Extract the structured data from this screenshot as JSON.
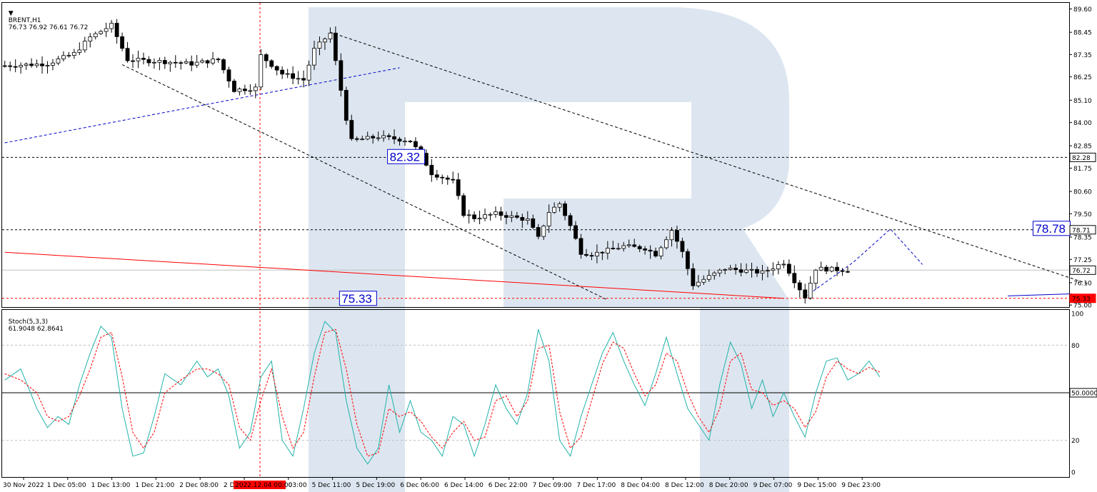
{
  "chart_data": [
    {
      "type": "candlestick",
      "symbol": "BRENT,H1",
      "ohlc_header": "76.73 76.92 76.61 76.72",
      "ylim": [
        74.9,
        89.9
      ],
      "y_ticks": [
        "89.60",
        "88.45",
        "87.35",
        "86.25",
        "85.10",
        "84.00",
        "82.85",
        "81.75",
        "80.60",
        "79.50",
        "78.35",
        "77.25",
        "76.10",
        "75.00"
      ],
      "x_ticks": [
        "30 Nov 2022",
        "1 Dec 05:00",
        "1 Dec 13:00",
        "1 Dec 21:00",
        "2 Dec 08:00",
        "2 Dec",
        "5 Dec 03:00",
        "5 Dec 11:00",
        "5 Dec 19:00",
        "6 Dec 06:00",
        "6 Dec 14:00",
        "6 Dec 22:00",
        "7 Dec 09:00",
        "7 Dec 17:00",
        "8 Dec 04:00",
        "8 Dec 12:00",
        "8 Dec 20:00",
        "9 Dec 07:00",
        "9 Dec 15:00",
        "9 Dec 23:00"
      ],
      "cursor_time_label": "2022.12.04 00:00",
      "bar_count": 200,
      "levels": [
        {
          "value": 82.28,
          "label": "82.28",
          "color": "#000000",
          "style": "dotted"
        },
        {
          "value": 78.71,
          "label": "78.71",
          "color": "#000000",
          "style": "dotted"
        },
        {
          "value": 76.72,
          "label": "76.72",
          "color": "#000000",
          "style": "solid",
          "role": "current-price"
        },
        {
          "value": 75.33,
          "label": "75.33",
          "color": "#ff0000",
          "style": "dotted"
        }
      ],
      "annotations": [
        {
          "text": "82.32",
          "x": 72,
          "y": 82.32,
          "color": "#0000cc"
        },
        {
          "text": "78.78",
          "x": 193,
          "y": 78.78,
          "color": "#0000cc"
        },
        {
          "text": "75.33",
          "x": 63,
          "y": 75.33,
          "color": "#0000cc"
        }
      ],
      "trendlines": [
        {
          "name": "channel-upper",
          "color": "#000000",
          "style": "dashed",
          "points": [
            [
              61,
              88.45
            ],
            [
              203,
              76.05
            ]
          ]
        },
        {
          "name": "channel-lower",
          "color": "#000000",
          "style": "dashed",
          "points": [
            [
              22,
              86.85
            ],
            [
              113,
              75.25
            ]
          ]
        },
        {
          "name": "support-line",
          "color": "#ff0000",
          "style": "solid",
          "points": [
            [
              0,
              77.6
            ],
            [
              146,
              75.33
            ]
          ]
        },
        {
          "name": "blue-trend",
          "color": "#0000cc",
          "style": "dashed",
          "points": [
            [
              0,
              83.0
            ],
            [
              74,
              86.7
            ]
          ]
        },
        {
          "name": "blue-forecast",
          "color": "#0000cc",
          "style": "dashed",
          "points": [
            [
              150,
              75.4
            ],
            [
              159,
              77.1
            ],
            [
              166,
              78.75
            ],
            [
              172,
              77.0
            ]
          ]
        },
        {
          "name": "blue-level",
          "color": "#0000cc",
          "style": "solid",
          "points": [
            [
              188,
              75.45
            ],
            [
              200,
              75.55
            ]
          ]
        }
      ],
      "anchors": [
        {
          "time": 0,
          "price": 86.8
        },
        {
          "time": 8,
          "price": 86.9
        },
        {
          "time": 13,
          "price": 87.4
        },
        {
          "time": 16,
          "price": 88.2
        },
        {
          "time": 20,
          "price": 88.8
        },
        {
          "time": 23,
          "price": 87.1
        },
        {
          "time": 30,
          "price": 87.0
        },
        {
          "time": 35,
          "price": 86.9
        },
        {
          "time": 40,
          "price": 87.1
        },
        {
          "time": 43,
          "price": 85.6
        },
        {
          "time": 47,
          "price": 85.7
        },
        {
          "time": 48,
          "price": 87.3
        },
        {
          "time": 52,
          "price": 86.4
        },
        {
          "time": 56,
          "price": 86.1
        },
        {
          "time": 58,
          "price": 87.6
        },
        {
          "time": 61,
          "price": 88.4
        },
        {
          "time": 62,
          "price": 87.0
        },
        {
          "time": 64,
          "price": 84.2
        },
        {
          "time": 65,
          "price": 83.1
        },
        {
          "time": 70,
          "price": 83.3
        },
        {
          "time": 76,
          "price": 83.1
        },
        {
          "time": 78,
          "price": 82.4
        },
        {
          "time": 80,
          "price": 81.5
        },
        {
          "time": 84,
          "price": 81.1
        },
        {
          "time": 86,
          "price": 79.5
        },
        {
          "time": 88,
          "price": 79.3
        },
        {
          "time": 92,
          "price": 79.5
        },
        {
          "time": 98,
          "price": 79.2
        },
        {
          "time": 100,
          "price": 78.3
        },
        {
          "time": 102,
          "price": 79.6
        },
        {
          "time": 104,
          "price": 80.0
        },
        {
          "time": 106,
          "price": 78.9
        },
        {
          "time": 108,
          "price": 77.6
        },
        {
          "time": 110,
          "price": 77.5
        },
        {
          "time": 116,
          "price": 77.9
        },
        {
          "time": 120,
          "price": 77.8
        },
        {
          "time": 122,
          "price": 77.5
        },
        {
          "time": 125,
          "price": 78.7
        },
        {
          "time": 127,
          "price": 77.6
        },
        {
          "time": 129,
          "price": 76.0
        },
        {
          "time": 132,
          "price": 76.4
        },
        {
          "time": 135,
          "price": 76.8
        },
        {
          "time": 142,
          "price": 76.6
        },
        {
          "time": 146,
          "price": 77.1
        },
        {
          "time": 148,
          "price": 76.2
        },
        {
          "time": 150,
          "price": 75.4
        },
        {
          "time": 152,
          "price": 76.8
        },
        {
          "time": 158,
          "price": 76.72
        }
      ]
    },
    {
      "type": "line",
      "name": "Stoch(5,3,3)",
      "header_values": "61.9048 62.8641",
      "ylim": [
        0,
        100
      ],
      "y_ticks": [
        "100",
        "80",
        "50.0000",
        "20",
        "0"
      ],
      "levels": [
        80,
        50,
        20
      ],
      "series": [
        {
          "name": "%K",
          "color": "#20b2aa",
          "points": [
            [
              0,
              58
            ],
            [
              3,
              65
            ],
            [
              6,
              40
            ],
            [
              8,
              28
            ],
            [
              10,
              35
            ],
            [
              12,
              30
            ],
            [
              14,
              55
            ],
            [
              16,
              75
            ],
            [
              18,
              92
            ],
            [
              20,
              85
            ],
            [
              22,
              40
            ],
            [
              24,
              10
            ],
            [
              26,
              12
            ],
            [
              28,
              35
            ],
            [
              30,
              62
            ],
            [
              33,
              55
            ],
            [
              36,
              70
            ],
            [
              38,
              60
            ],
            [
              40,
              65
            ],
            [
              42,
              48
            ],
            [
              44,
              15
            ],
            [
              46,
              25
            ],
            [
              48,
              60
            ],
            [
              50,
              70
            ],
            [
              52,
              20
            ],
            [
              54,
              10
            ],
            [
              56,
              40
            ],
            [
              58,
              75
            ],
            [
              60,
              95
            ],
            [
              62,
              88
            ],
            [
              64,
              45
            ],
            [
              66,
              15
            ],
            [
              68,
              5
            ],
            [
              70,
              15
            ],
            [
              72,
              55
            ],
            [
              74,
              25
            ],
            [
              76,
              45
            ],
            [
              78,
              25
            ],
            [
              80,
              20
            ],
            [
              82,
              10
            ],
            [
              84,
              35
            ],
            [
              86,
              30
            ],
            [
              88,
              10
            ],
            [
              90,
              30
            ],
            [
              92,
              55
            ],
            [
              94,
              40
            ],
            [
              96,
              30
            ],
            [
              98,
              50
            ],
            [
              100,
              90
            ],
            [
              102,
              70
            ],
            [
              104,
              20
            ],
            [
              106,
              10
            ],
            [
              108,
              35
            ],
            [
              110,
              55
            ],
            [
              112,
              75
            ],
            [
              114,
              88
            ],
            [
              116,
              70
            ],
            [
              118,
              55
            ],
            [
              120,
              42
            ],
            [
              122,
              62
            ],
            [
              124,
              85
            ],
            [
              126,
              62
            ],
            [
              128,
              40
            ],
            [
              130,
              30
            ],
            [
              132,
              20
            ],
            [
              134,
              55
            ],
            [
              136,
              82
            ],
            [
              138,
              68
            ],
            [
              140,
              40
            ],
            [
              142,
              58
            ],
            [
              144,
              35
            ],
            [
              146,
              50
            ],
            [
              148,
              35
            ],
            [
              150,
              22
            ],
            [
              152,
              50
            ],
            [
              154,
              70
            ],
            [
              156,
              72
            ],
            [
              158,
              58
            ],
            [
              160,
              62
            ],
            [
              162,
              70
            ],
            [
              164,
              60
            ]
          ]
        },
        {
          "name": "%D",
          "color": "#ff0000",
          "style": "dashed",
          "points": [
            [
              0,
              62
            ],
            [
              3,
              58
            ],
            [
              6,
              50
            ],
            [
              8,
              35
            ],
            [
              10,
              32
            ],
            [
              12,
              35
            ],
            [
              14,
              48
            ],
            [
              16,
              65
            ],
            [
              18,
              85
            ],
            [
              20,
              88
            ],
            [
              22,
              60
            ],
            [
              24,
              25
            ],
            [
              26,
              15
            ],
            [
              28,
              25
            ],
            [
              30,
              50
            ],
            [
              33,
              58
            ],
            [
              36,
              65
            ],
            [
              38,
              65
            ],
            [
              40,
              62
            ],
            [
              42,
              55
            ],
            [
              44,
              28
            ],
            [
              46,
              20
            ],
            [
              48,
              45
            ],
            [
              50,
              65
            ],
            [
              52,
              35
            ],
            [
              54,
              15
            ],
            [
              56,
              25
            ],
            [
              58,
              60
            ],
            [
              60,
              88
            ],
            [
              62,
              90
            ],
            [
              64,
              65
            ],
            [
              66,
              30
            ],
            [
              68,
              10
            ],
            [
              70,
              12
            ],
            [
              72,
              40
            ],
            [
              74,
              35
            ],
            [
              76,
              38
            ],
            [
              78,
              32
            ],
            [
              80,
              22
            ],
            [
              82,
              15
            ],
            [
              84,
              25
            ],
            [
              86,
              32
            ],
            [
              88,
              20
            ],
            [
              90,
              22
            ],
            [
              92,
              45
            ],
            [
              94,
              48
            ],
            [
              96,
              35
            ],
            [
              98,
              45
            ],
            [
              100,
              78
            ],
            [
              102,
              80
            ],
            [
              104,
              38
            ],
            [
              106,
              15
            ],
            [
              108,
              22
            ],
            [
              110,
              45
            ],
            [
              112,
              68
            ],
            [
              114,
              82
            ],
            [
              116,
              78
            ],
            [
              118,
              62
            ],
            [
              120,
              48
            ],
            [
              122,
              55
            ],
            [
              124,
              75
            ],
            [
              126,
              70
            ],
            [
              128,
              50
            ],
            [
              130,
              35
            ],
            [
              132,
              25
            ],
            [
              134,
              40
            ],
            [
              136,
              70
            ],
            [
              138,
              75
            ],
            [
              140,
              52
            ],
            [
              142,
              50
            ],
            [
              144,
              42
            ],
            [
              146,
              45
            ],
            [
              148,
              40
            ],
            [
              150,
              28
            ],
            [
              152,
              38
            ],
            [
              154,
              60
            ],
            [
              156,
              70
            ],
            [
              158,
              65
            ],
            [
              160,
              62
            ],
            [
              162,
              66
            ],
            [
              164,
              63
            ]
          ]
        }
      ]
    }
  ],
  "header": {
    "symbol": "BRENT,H1",
    "ohlc": "76.73 76.92 76.61 76.72"
  },
  "stoch_header": {
    "name": "Stoch(5,3,3)",
    "values": "61.9048 62.8641"
  },
  "colors": {
    "watermark": "#dde6f0",
    "bull": "#ffffff",
    "bear": "#000000",
    "stoch_k": "#20b2aa",
    "stoch_d": "#ff0000",
    "annotation": "#0000cc",
    "support": "#ff0000"
  },
  "icons": {
    "menu_arrow": "triangle-down-icon",
    "watermark": "r-logo-watermark"
  }
}
